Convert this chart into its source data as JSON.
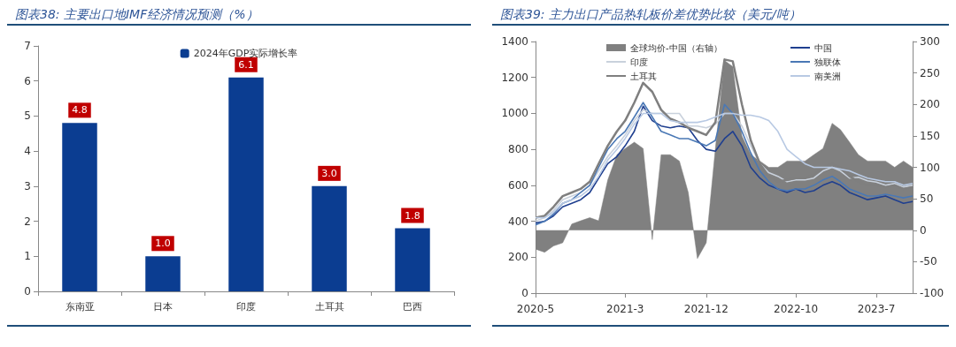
{
  "chart_data": [
    {
      "type": "bar",
      "title": "图表38: 主要出口地IMF经济情况预测（%）",
      "categories": [
        "东南亚",
        "日本",
        "印度",
        "土耳其",
        "巴西"
      ],
      "series": [
        {
          "name": "2024年GDP实际增长率",
          "color": "#0b3d91",
          "values": [
            4.8,
            1.0,
            6.1,
            3.0,
            1.8
          ],
          "value_labels": [
            "4.8",
            "1.0",
            "6.1",
            "3.0",
            "1.8"
          ]
        }
      ],
      "ylim": [
        0,
        7
      ],
      "yticks": [
        0,
        1,
        2,
        3,
        4,
        5,
        6,
        7
      ],
      "legend": "top"
    },
    {
      "type": "line",
      "title": "图表39: 主力出口产品热轧板价差优势比较（美元/吨）",
      "marker": "none",
      "legend": "top",
      "x": [
        "2020-05",
        "2020-06",
        "2020-07",
        "2020-08",
        "2020-09",
        "2020-10",
        "2020-11",
        "2020-12",
        "2021-01",
        "2021-02",
        "2021-03",
        "2021-04",
        "2021-05",
        "2021-06",
        "2021-07",
        "2021-08",
        "2021-09",
        "2021-10",
        "2021-11",
        "2021-12",
        "2022-01",
        "2022-02",
        "2022-03",
        "2022-04",
        "2022-05",
        "2022-06",
        "2022-07",
        "2022-08",
        "2022-09",
        "2022-10",
        "2022-11",
        "2022-12",
        "2023-01",
        "2023-02",
        "2023-03",
        "2023-04",
        "2023-05",
        "2023-06",
        "2023-07",
        "2023-08",
        "2023-09",
        "2023-10",
        "2023-11"
      ],
      "xlim": [
        "2020-05",
        "2023-11"
      ],
      "xticks": [
        {
          "value": "2020-05",
          "label": "2020-5"
        },
        {
          "value": "2021-03",
          "label": "2021-3"
        },
        {
          "value": "2021-12",
          "label": "2021-12"
        },
        {
          "value": "2022-10",
          "label": "2022-10"
        },
        {
          "value": "2023-07",
          "label": "2023-7"
        }
      ],
      "ylim": [
        0,
        1400
      ],
      "yticks": [
        0,
        200,
        400,
        600,
        800,
        1000,
        1200,
        1400
      ],
      "y2lim": [
        -100,
        300
      ],
      "y2ticks": [
        -100,
        -50,
        0,
        50,
        100,
        150,
        200,
        250,
        300
      ],
      "series": [
        {
          "name": "全球均价-中国（右轴）",
          "type": "area",
          "axis": "y2",
          "color": "#808080",
          "values": [
            -30,
            -35,
            -25,
            -20,
            10,
            15,
            20,
            15,
            80,
            120,
            130,
            140,
            130,
            -15,
            120,
            120,
            110,
            60,
            -45,
            -20,
            130,
            270,
            260,
            150,
            120,
            110,
            100,
            100,
            110,
            110,
            110,
            120,
            130,
            170,
            160,
            140,
            120,
            110,
            110,
            110,
            100,
            110,
            100
          ]
        },
        {
          "name": "中国",
          "color": "#1f3f8f",
          "values": [
            390,
            400,
            430,
            480,
            500,
            520,
            560,
            640,
            720,
            760,
            820,
            900,
            1040,
            960,
            930,
            920,
            930,
            920,
            850,
            800,
            790,
            860,
            900,
            820,
            700,
            640,
            600,
            580,
            560,
            580,
            560,
            570,
            600,
            620,
            600,
            560,
            540,
            520,
            530,
            540,
            520,
            500,
            510
          ]
        },
        {
          "name": "印度",
          "color": "#c9d1dc",
          "values": [
            400,
            420,
            460,
            520,
            540,
            560,
            600,
            680,
            760,
            820,
            880,
            960,
            1020,
            1000,
            1000,
            1000,
            1000,
            930,
            930,
            920,
            940,
            1000,
            1000,
            930,
            820,
            720,
            670,
            650,
            620,
            630,
            630,
            640,
            680,
            700,
            680,
            640,
            645,
            625,
            618,
            600,
            610,
            590,
            600
          ]
        },
        {
          "name": "独联体",
          "color": "#4a78b5",
          "values": [
            380,
            400,
            440,
            500,
            520,
            560,
            600,
            700,
            800,
            860,
            900,
            980,
            1060,
            980,
            900,
            880,
            860,
            860,
            840,
            820,
            850,
            1050,
            1000,
            900,
            780,
            680,
            620,
            580,
            570,
            580,
            580,
            600,
            630,
            650,
            620,
            580,
            560,
            540,
            540,
            550,
            540,
            530,
            540
          ]
        },
        {
          "name": "土耳其",
          "color": "#7f7f7f",
          "values": [
            420,
            430,
            480,
            540,
            560,
            580,
            620,
            720,
            820,
            900,
            960,
            1060,
            1170,
            1120,
            1020,
            970,
            950,
            920,
            900,
            880,
            950,
            1300,
            1290,
            1050,
            850,
            720,
            650,
            620,
            630,
            640,
            640,
            660,
            700,
            720,
            700,
            650,
            620,
            600,
            600,
            590,
            600,
            580,
            590
          ]
        },
        {
          "name": "南美洲",
          "color": "#b8c9e3",
          "values": [
            420,
            420,
            450,
            500,
            520,
            540,
            580,
            650,
            740,
            800,
            860,
            940,
            1000,
            1000,
            1000,
            960,
            950,
            950,
            950,
            960,
            980,
            1000,
            1000,
            990,
            990,
            980,
            960,
            900,
            800,
            760,
            720,
            700,
            700,
            700,
            690,
            680,
            660,
            640,
            630,
            620,
            620,
            600,
            610
          ]
        }
      ]
    }
  ]
}
